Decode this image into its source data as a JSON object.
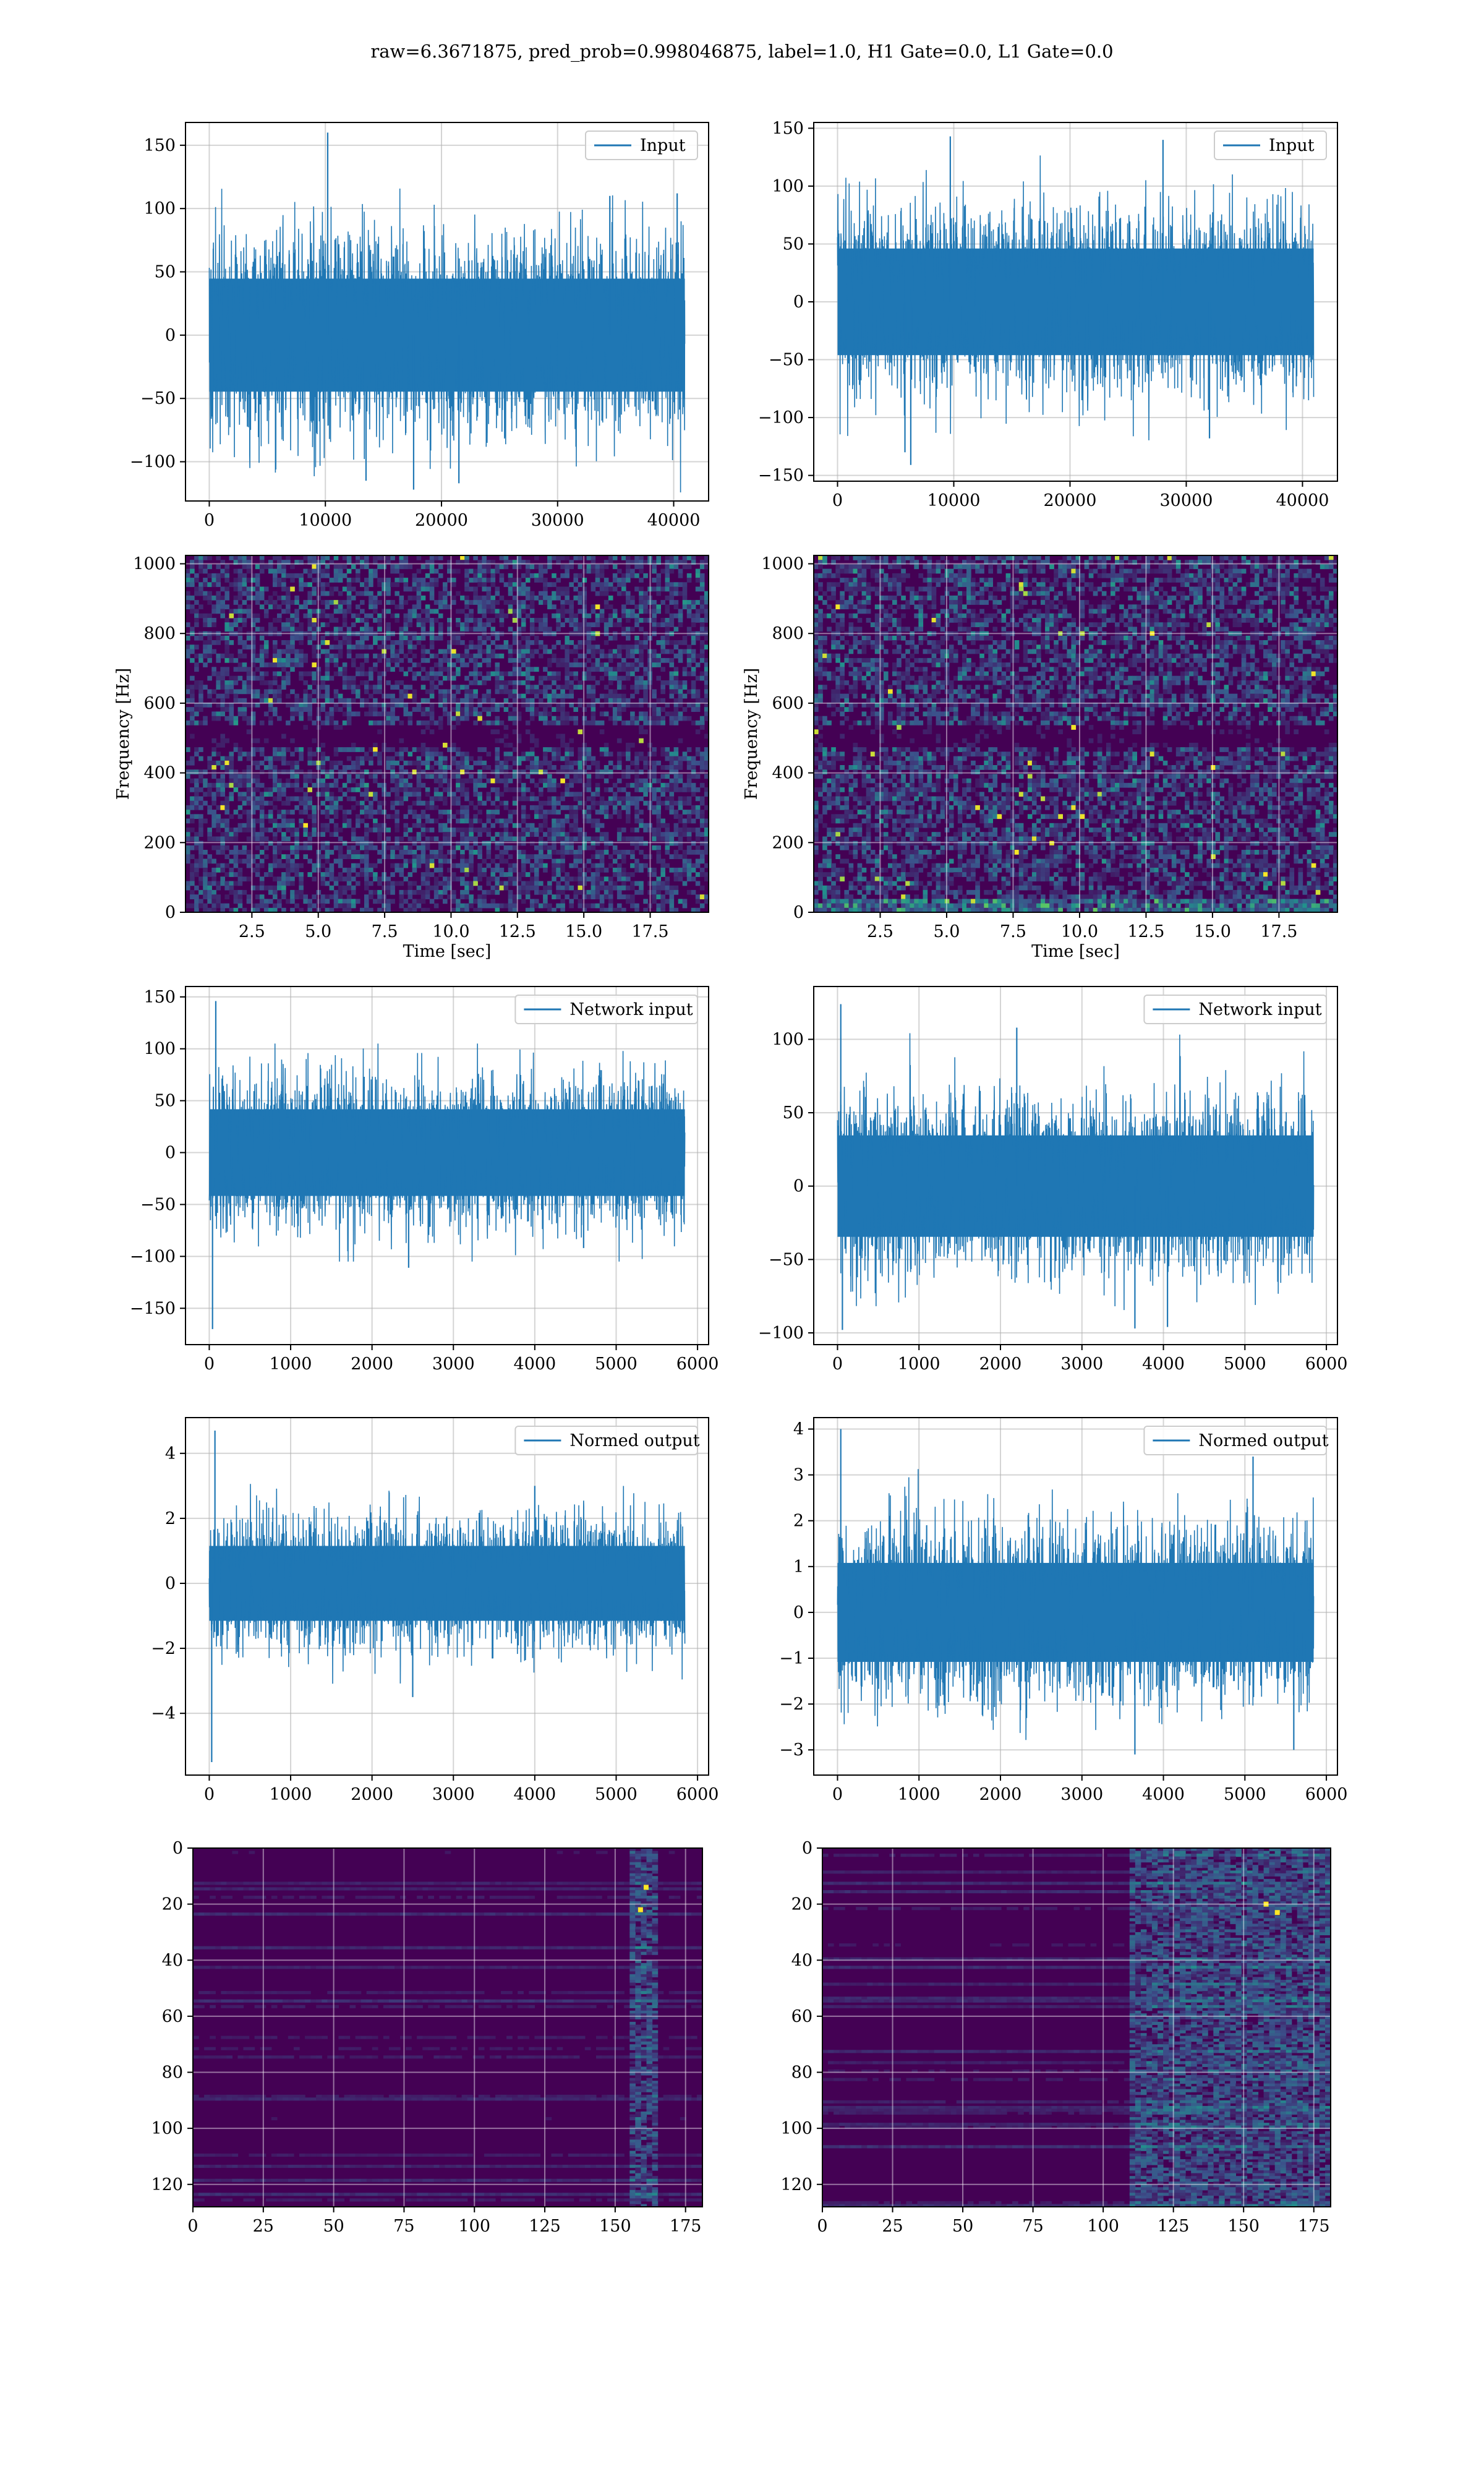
{
  "figure": {
    "title": "raw=6.3671875, pred_prob=0.998046875, label=1.0, H1 Gate=0.0, L1 Gate=0.0",
    "colors": {
      "line": "#1f77b4",
      "grid": "#b0b0b0",
      "frame": "#000000",
      "viridis_low": "#440154",
      "viridis_high": "#fde725"
    }
  },
  "chart_data": [
    {
      "id": "p0",
      "type": "line",
      "signal": "input",
      "title": "",
      "xlabel": "",
      "ylabel": "",
      "series": [
        {
          "name": "Input"
        }
      ],
      "legend": "upper right",
      "xlim": [
        -2048,
        43008
      ],
      "ylim": [
        -131,
        168
      ],
      "xticks": [
        0,
        10000,
        20000,
        30000,
        40000
      ],
      "yticks": [
        -100,
        -50,
        0,
        50,
        100,
        150
      ],
      "n_points": 40960,
      "envelope": {
        "p95": 62,
        "p99": 88,
        "max": 125
      },
      "spikes": [
        [
          10200,
          160
        ],
        [
          17600,
          -122
        ],
        [
          21500,
          -117
        ],
        [
          13500,
          -115
        ],
        [
          34500,
          110
        ],
        [
          40300,
          112
        ]
      ],
      "grid": true
    },
    {
      "id": "p1",
      "type": "line",
      "signal": "input",
      "title": "",
      "xlabel": "",
      "ylabel": "",
      "series": [
        {
          "name": "Input"
        }
      ],
      "legend": "upper right",
      "xlim": [
        -2048,
        43008
      ],
      "ylim": [
        -155,
        155
      ],
      "xticks": [
        0,
        10000,
        20000,
        30000,
        40000
      ],
      "yticks": [
        -150,
        -100,
        -50,
        0,
        50,
        100,
        150
      ],
      "n_points": 40960,
      "envelope": {
        "p95": 64,
        "p99": 95,
        "max": 130
      },
      "spikes": [
        [
          6300,
          -141
        ],
        [
          9700,
          143
        ],
        [
          5800,
          -130
        ],
        [
          28000,
          140
        ],
        [
          32000,
          -118
        ]
      ],
      "grid": true
    },
    {
      "id": "p2",
      "type": "heatmap",
      "kind": "spectrogram",
      "title": "",
      "xlabel": "Time [sec]",
      "ylabel": "Frequency [Hz]",
      "xlim": [
        0,
        19.7
      ],
      "ylim": [
        0,
        1024
      ],
      "xticks": [
        2.5,
        5.0,
        7.5,
        10.0,
        12.5,
        15.0,
        17.5
      ],
      "xtick_labels": [
        "2.5",
        "5.0",
        "7.5",
        "10.0",
        "12.5",
        "15.0",
        "17.5"
      ],
      "yticks": [
        0,
        200,
        400,
        600,
        800,
        1000
      ],
      "colormap": "viridis",
      "grid": true
    },
    {
      "id": "p3",
      "type": "heatmap",
      "kind": "spectrogram",
      "title": "",
      "xlabel": "Time [sec]",
      "ylabel": "Frequency [Hz]",
      "xlim": [
        0,
        19.7
      ],
      "ylim": [
        0,
        1024
      ],
      "xticks": [
        2.5,
        5.0,
        7.5,
        10.0,
        12.5,
        15.0,
        17.5
      ],
      "xtick_labels": [
        "2.5",
        "5.0",
        "7.5",
        "10.0",
        "12.5",
        "15.0",
        "17.5"
      ],
      "yticks": [
        0,
        200,
        400,
        600,
        800,
        1000
      ],
      "colormap": "viridis",
      "grid": true
    },
    {
      "id": "p4",
      "type": "line",
      "signal": "network",
      "title": "",
      "xlabel": "",
      "ylabel": "",
      "series": [
        {
          "name": "Network input"
        }
      ],
      "legend": "upper right",
      "xlim": [
        -292,
        6136
      ],
      "ylim": [
        -185,
        160
      ],
      "xticks": [
        0,
        1000,
        2000,
        3000,
        4000,
        5000,
        6000
      ],
      "yticks": [
        -150,
        -100,
        -50,
        0,
        50,
        100,
        150
      ],
      "n_points": 5844,
      "envelope": {
        "p95": 58,
        "p99": 82,
        "max": 105
      },
      "spikes": [
        [
          80,
          146
        ],
        [
          40,
          -170
        ],
        [
          2450,
          -111
        ],
        [
          4600,
          -92
        ]
      ],
      "grid": true
    },
    {
      "id": "p5",
      "type": "line",
      "signal": "network",
      "title": "",
      "xlabel": "",
      "ylabel": "",
      "series": [
        {
          "name": "Network input"
        }
      ],
      "legend": "upper right",
      "xlim": [
        -292,
        6136
      ],
      "ylim": [
        -108,
        136
      ],
      "xticks": [
        0,
        1000,
        2000,
        3000,
        4000,
        5000,
        6000
      ],
      "yticks": [
        -100,
        -50,
        0,
        50,
        100
      ],
      "n_points": 5844,
      "envelope": {
        "p95": 48,
        "p99": 70,
        "max": 110
      },
      "spikes": [
        [
          40,
          124
        ],
        [
          60,
          -98
        ],
        [
          3650,
          -97
        ],
        [
          4050,
          -96
        ],
        [
          2200,
          108
        ]
      ],
      "grid": true
    },
    {
      "id": "p6",
      "type": "line",
      "signal": "normed",
      "title": "",
      "xlabel": "",
      "ylabel": "",
      "series": [
        {
          "name": "Normed output"
        }
      ],
      "legend": "upper right",
      "xlim": [
        -292,
        6136
      ],
      "ylim": [
        -5.9,
        5.1
      ],
      "xticks": [
        0,
        1000,
        2000,
        3000,
        4000,
        5000,
        6000
      ],
      "yticks": [
        -4,
        -2,
        0,
        2,
        4
      ],
      "n_points": 5844,
      "envelope": {
        "p95": 1.6,
        "p99": 2.3,
        "max": 3.3
      },
      "spikes": [
        [
          70,
          4.7
        ],
        [
          30,
          -5.5
        ],
        [
          2500,
          -3.5
        ],
        [
          4000,
          3.0
        ]
      ],
      "grid": true
    },
    {
      "id": "p7",
      "type": "line",
      "signal": "normed",
      "title": "",
      "xlabel": "",
      "ylabel": "",
      "series": [
        {
          "name": "Normed output"
        }
      ],
      "legend": "upper right",
      "xlim": [
        -292,
        6136
      ],
      "ylim": [
        -3.55,
        4.25
      ],
      "xticks": [
        0,
        1000,
        2000,
        3000,
        4000,
        5000,
        6000
      ],
      "yticks": [
        -3,
        -2,
        -1,
        0,
        1,
        2,
        3,
        4
      ],
      "n_points": 5844,
      "envelope": {
        "p95": 1.5,
        "p99": 2.2,
        "max": 3.3
      },
      "spikes": [
        [
          40,
          4.0
        ],
        [
          3650,
          -3.1
        ],
        [
          5100,
          3.4
        ],
        [
          5600,
          -3.0
        ]
      ],
      "grid": true
    },
    {
      "id": "p8",
      "type": "heatmap",
      "kind": "feature-map",
      "title": "",
      "xlabel": "",
      "ylabel": "",
      "xlim": [
        0,
        181
      ],
      "ylim": [
        128,
        0
      ],
      "xticks": [
        0,
        25,
        50,
        75,
        100,
        125,
        150,
        175
      ],
      "yticks": [
        0,
        20,
        40,
        60,
        80,
        100,
        120
      ],
      "colormap": "viridis",
      "active_columns": [
        155,
        165
      ],
      "hot_cells": [
        [
          159,
          22
        ],
        [
          161,
          14
        ]
      ],
      "grid": true
    },
    {
      "id": "p9",
      "type": "heatmap",
      "kind": "feature-map",
      "title": "",
      "xlabel": "",
      "ylabel": "",
      "xlim": [
        0,
        181
      ],
      "ylim": [
        128,
        0
      ],
      "xticks": [
        0,
        25,
        50,
        75,
        100,
        125,
        150,
        175
      ],
      "yticks": [
        0,
        20,
        40,
        60,
        80,
        100,
        120
      ],
      "colormap": "viridis",
      "active_columns": [
        110,
        181
      ],
      "hot_cells": [
        [
          162,
          23
        ],
        [
          158,
          20
        ]
      ],
      "grid": true
    }
  ]
}
